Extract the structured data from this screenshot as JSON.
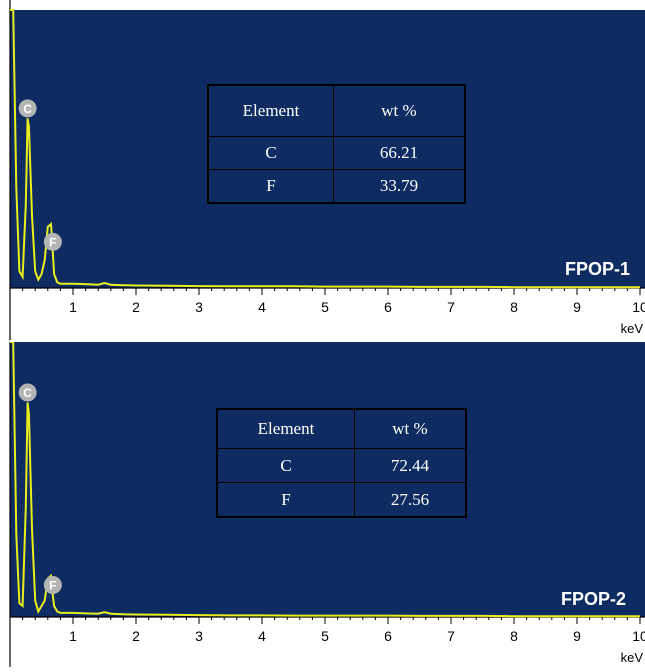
{
  "chart_data": [
    {
      "type": "line",
      "title": "",
      "xlabel": "keV",
      "ylabel": "",
      "xlim": [
        0,
        10
      ],
      "ylim": [
        0,
        100
      ],
      "xticks": [
        "1",
        "2",
        "3",
        "4",
        "5",
        "6",
        "7",
        "8",
        "9",
        "10"
      ],
      "sample_label": "FPOP-1",
      "colors": {
        "plot_bg": "#0f2c62",
        "spectrum": "#e8ee1e",
        "marker": "#b4b4b4"
      },
      "series": [
        {
          "x": [
            0.0,
            0.05,
            0.1,
            0.15,
            0.2,
            0.25,
            0.28,
            0.3,
            0.35,
            0.4,
            0.45,
            0.5,
            0.55,
            0.6,
            0.65,
            0.68,
            0.7,
            0.75,
            0.8,
            0.9,
            1.0,
            1.2,
            1.4,
            1.5,
            1.6,
            1.8,
            2.0,
            2.5,
            3.0,
            3.5,
            4.0,
            4.5,
            5.0,
            5.5,
            6.0,
            6.5,
            7.0,
            7.5,
            8.0,
            9.0,
            10.0
          ],
          "values": [
            100,
            100,
            36,
            6,
            4,
            30,
            61,
            58,
            26,
            6,
            3,
            5,
            10,
            22,
            23,
            13,
            5,
            2,
            1.5,
            1.5,
            1.5,
            1.4,
            1.2,
            1.8,
            1.2,
            1.0,
            0.9,
            0.8,
            0.7,
            0.6,
            0.6,
            0.6,
            0.5,
            0.5,
            0.5,
            0.4,
            0.4,
            0.4,
            0.3,
            0.3,
            0.3
          ]
        }
      ],
      "markers": [
        {
          "label": "C",
          "x": 0.28
        },
        {
          "label": "F",
          "x": 0.68
        }
      ],
      "table": {
        "headers": [
          "Element",
          "wt %"
        ],
        "rows": [
          [
            "C",
            "66.21"
          ],
          [
            "F",
            "33.79"
          ]
        ]
      }
    },
    {
      "type": "line",
      "title": "",
      "xlabel": "keV",
      "ylabel": "",
      "xlim": [
        0,
        10
      ],
      "ylim": [
        0,
        100
      ],
      "xticks": [
        "1",
        "2",
        "3",
        "4",
        "5",
        "6",
        "7",
        "8",
        "9",
        "10"
      ],
      "sample_label": "FPOP-2",
      "colors": {
        "plot_bg": "#0f2c62",
        "spectrum": "#e8ee1e",
        "marker": "#b4b4b4"
      },
      "series": [
        {
          "x": [
            0.0,
            0.05,
            0.1,
            0.15,
            0.2,
            0.25,
            0.28,
            0.3,
            0.35,
            0.4,
            0.45,
            0.5,
            0.55,
            0.6,
            0.65,
            0.68,
            0.7,
            0.75,
            0.8,
            0.9,
            1.0,
            1.2,
            1.4,
            1.5,
            1.6,
            1.8,
            2.0,
            2.5,
            3.0,
            3.5,
            4.0,
            4.5,
            5.0,
            5.5,
            6.0,
            6.5,
            7.0,
            7.5,
            8.0,
            9.0,
            10.0
          ],
          "values": [
            100,
            100,
            30,
            5,
            4,
            40,
            78,
            74,
            32,
            6,
            2,
            4,
            6,
            14,
            15,
            8,
            4,
            2,
            1.5,
            1.5,
            1.5,
            1.3,
            1.2,
            1.8,
            1.2,
            1.0,
            0.9,
            0.8,
            0.7,
            0.6,
            0.6,
            0.5,
            0.5,
            0.5,
            0.5,
            0.4,
            0.4,
            0.4,
            0.3,
            0.3,
            0.3
          ]
        }
      ],
      "markers": [
        {
          "label": "C",
          "x": 0.28
        },
        {
          "label": "F",
          "x": 0.68
        }
      ],
      "table": {
        "headers": [
          "Element",
          "wt %"
        ],
        "rows": [
          [
            "C",
            "72.44"
          ],
          [
            "F",
            "27.56"
          ]
        ]
      }
    }
  ]
}
